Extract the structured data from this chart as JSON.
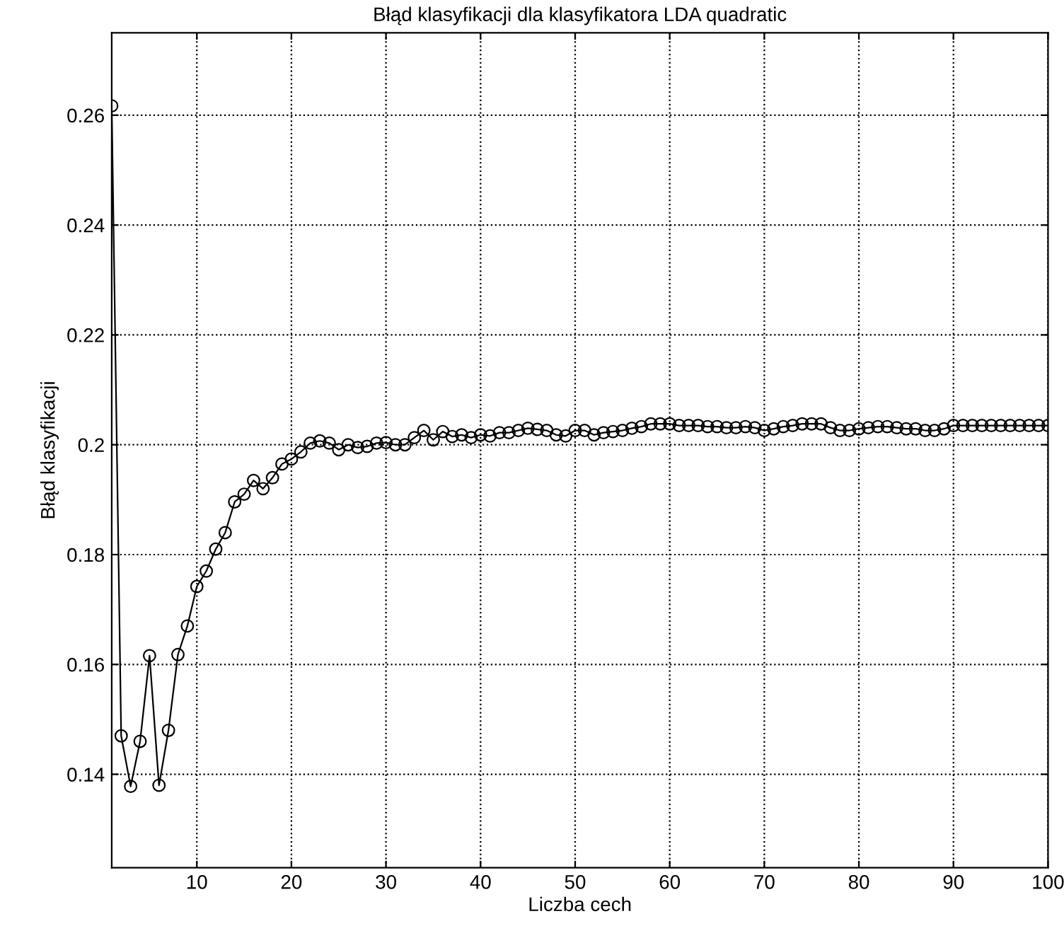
{
  "chart_data": {
    "type": "line",
    "title": "Błąd klasyfikacji dla klasyfikatora LDA quadratic",
    "xlabel": "Liczba cech",
    "ylabel": "Błąd klasyfikacji",
    "x": [
      1,
      2,
      3,
      4,
      5,
      6,
      7,
      8,
      9,
      10,
      11,
      12,
      13,
      14,
      15,
      16,
      17,
      18,
      19,
      20,
      21,
      22,
      23,
      24,
      25,
      26,
      27,
      28,
      29,
      30,
      31,
      32,
      33,
      34,
      35,
      36,
      37,
      38,
      39,
      40,
      41,
      42,
      43,
      44,
      45,
      46,
      47,
      48,
      49,
      50,
      51,
      52,
      53,
      54,
      55,
      56,
      57,
      58,
      59,
      60,
      61,
      62,
      63,
      64,
      65,
      66,
      67,
      68,
      69,
      70,
      71,
      72,
      73,
      74,
      75,
      76,
      77,
      78,
      79,
      80,
      81,
      82,
      83,
      84,
      85,
      86,
      87,
      88,
      89,
      90,
      91,
      92,
      93,
      94,
      95,
      96,
      97,
      98,
      99,
      100
    ],
    "series": [
      {
        "color": "#000000",
        "values": [
          0.2617,
          0.147,
          0.1378,
          0.146,
          0.1616,
          0.138,
          0.148,
          0.1618,
          0.167,
          0.1742,
          0.177,
          0.181,
          0.184,
          0.1896,
          0.191,
          0.1935,
          0.192,
          0.194,
          0.1965,
          0.1974,
          0.1987,
          0.2003,
          0.2007,
          0.2003,
          0.1991,
          0.2,
          0.1995,
          0.1997,
          0.2003,
          0.2004,
          0.2,
          0.2,
          0.2013,
          0.2026,
          0.2009,
          0.2024,
          0.2015,
          0.2018,
          0.2013,
          0.2018,
          0.2016,
          0.2022,
          0.2022,
          0.2026,
          0.203,
          0.2028,
          0.2026,
          0.2018,
          0.2016,
          0.2026,
          0.2026,
          0.2018,
          0.2022,
          0.2024,
          0.2026,
          0.203,
          0.2033,
          0.2038,
          0.2038,
          0.2038,
          0.2035,
          0.2035,
          0.2035,
          0.2033,
          0.2033,
          0.2031,
          0.2031,
          0.2033,
          0.2031,
          0.2026,
          0.2029,
          0.2033,
          0.2035,
          0.2038,
          0.2038,
          0.2038,
          0.2031,
          0.2026,
          0.2026,
          0.2029,
          0.2031,
          0.2033,
          0.2033,
          0.2031,
          0.2029,
          0.2029,
          0.2026,
          0.2026,
          0.2029,
          0.2035,
          0.2035,
          0.2035,
          0.2035,
          0.2035,
          0.2035,
          0.2035,
          0.2035,
          0.2035,
          0.2035,
          0.2035
        ]
      }
    ],
    "xlim": [
      1,
      100
    ],
    "xticks": [
      10,
      20,
      30,
      40,
      50,
      60,
      70,
      80,
      90,
      100
    ],
    "ylim": [
      0.123,
      0.275
    ],
    "yticks": [
      0.14,
      0.16,
      0.18,
      0.2,
      0.22,
      0.24,
      0.26
    ],
    "grid": true,
    "marker": "circle",
    "line_style": "solid"
  }
}
